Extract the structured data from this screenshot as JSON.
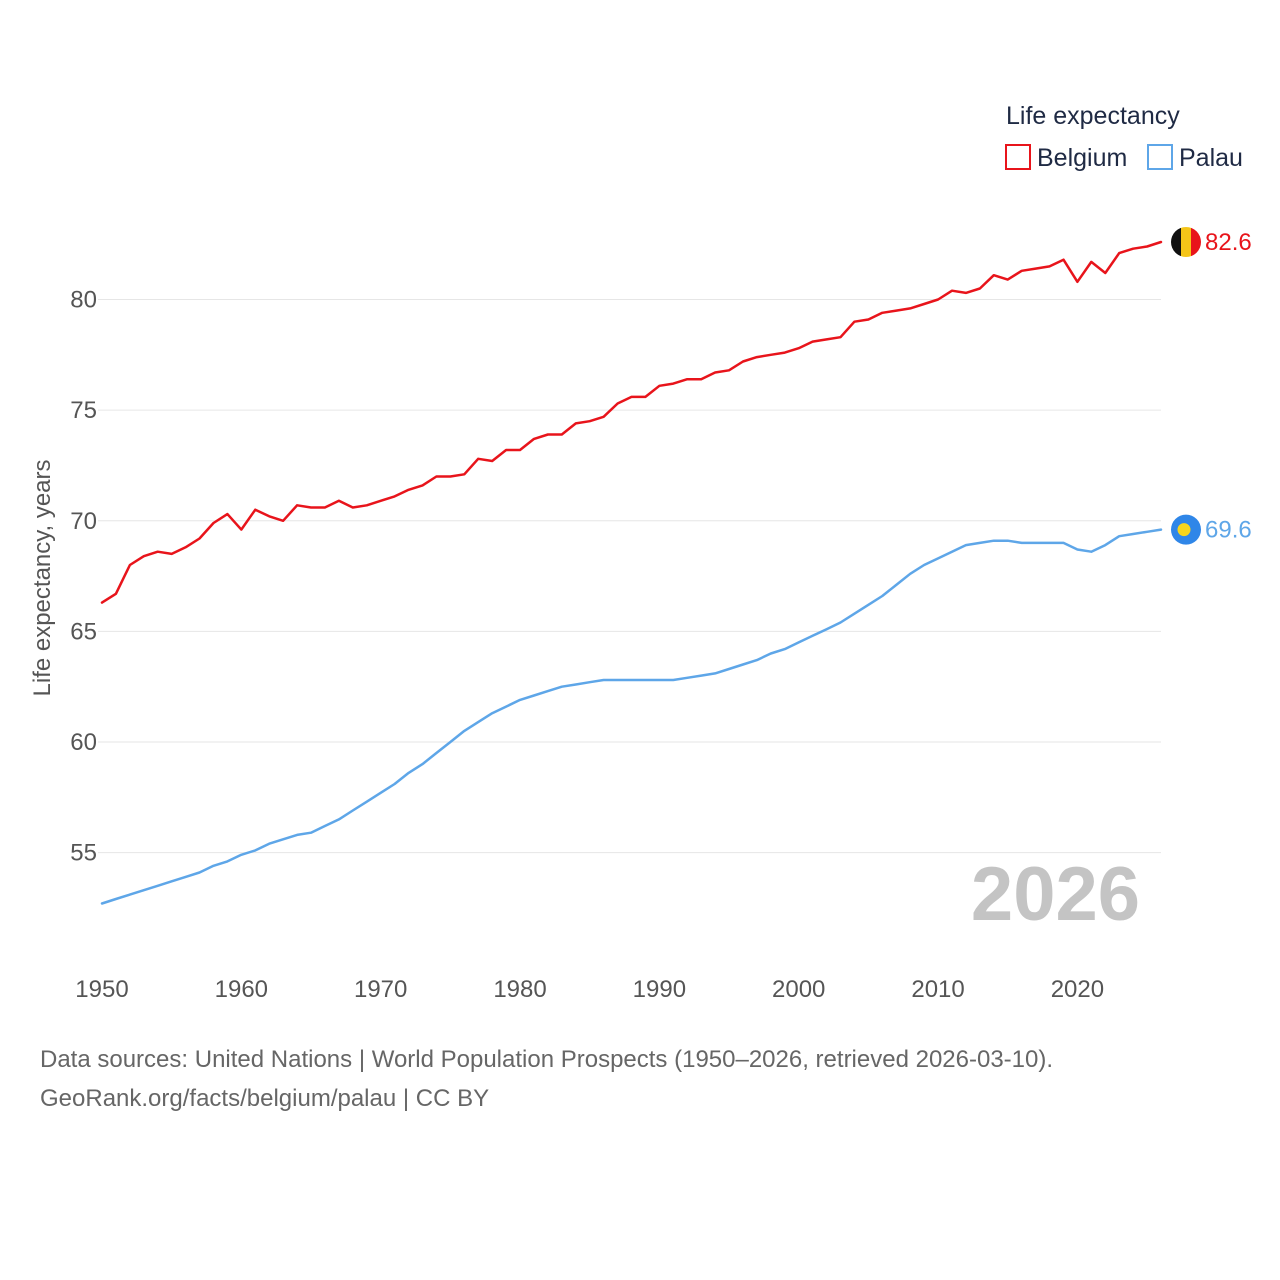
{
  "chart_data": {
    "type": "line",
    "title": "",
    "ylabel": "Life expectancy, years",
    "xlabel": "",
    "xlim": [
      1950,
      2026
    ],
    "ylim": [
      51.5,
      84.5
    ],
    "yticks": [
      55,
      60,
      65,
      70,
      75,
      80
    ],
    "xticks": [
      1950,
      1960,
      1970,
      1980,
      1990,
      2000,
      2010,
      2020
    ],
    "legend": {
      "title": "Life expectancy",
      "position": "top-right",
      "entries": [
        "Belgium",
        "Palau"
      ]
    },
    "watermark_year": "2026",
    "x": [
      1950,
      1951,
      1952,
      1953,
      1954,
      1955,
      1956,
      1957,
      1958,
      1959,
      1960,
      1961,
      1962,
      1963,
      1964,
      1965,
      1966,
      1967,
      1968,
      1969,
      1970,
      1971,
      1972,
      1973,
      1974,
      1975,
      1976,
      1977,
      1978,
      1979,
      1980,
      1981,
      1982,
      1983,
      1984,
      1985,
      1986,
      1987,
      1988,
      1989,
      1990,
      1991,
      1992,
      1993,
      1994,
      1995,
      1996,
      1997,
      1998,
      1999,
      2000,
      2001,
      2002,
      2003,
      2004,
      2005,
      2006,
      2007,
      2008,
      2009,
      2010,
      2011,
      2012,
      2013,
      2014,
      2015,
      2016,
      2017,
      2018,
      2019,
      2020,
      2021,
      2022,
      2023,
      2024,
      2025,
      2026
    ],
    "series": [
      {
        "name": "Belgium",
        "color": "#e8141b",
        "end_label": "82.6",
        "values": [
          66.3,
          66.7,
          68.0,
          68.4,
          68.6,
          68.5,
          68.8,
          69.2,
          69.9,
          70.3,
          69.6,
          70.5,
          70.2,
          70.0,
          70.7,
          70.6,
          70.6,
          70.9,
          70.6,
          70.7,
          70.9,
          71.1,
          71.4,
          71.6,
          72.0,
          72.0,
          72.1,
          72.8,
          72.7,
          73.2,
          73.2,
          73.7,
          73.9,
          73.9,
          74.4,
          74.5,
          74.7,
          75.3,
          75.6,
          75.6,
          76.1,
          76.2,
          76.4,
          76.4,
          76.7,
          76.8,
          77.2,
          77.4,
          77.5,
          77.6,
          77.8,
          78.1,
          78.2,
          78.3,
          79.0,
          79.1,
          79.4,
          79.5,
          79.6,
          79.8,
          80.0,
          80.4,
          80.3,
          80.5,
          81.1,
          80.9,
          81.3,
          81.4,
          81.5,
          81.8,
          80.8,
          81.7,
          81.2,
          82.1,
          82.3,
          82.4,
          82.6
        ]
      },
      {
        "name": "Palau",
        "color": "#5ea6e8",
        "end_label": "69.6",
        "values": [
          52.7,
          52.9,
          53.1,
          53.3,
          53.5,
          53.7,
          53.9,
          54.1,
          54.4,
          54.6,
          54.9,
          55.1,
          55.4,
          55.6,
          55.8,
          55.9,
          56.2,
          56.5,
          56.9,
          57.3,
          57.7,
          58.1,
          58.6,
          59.0,
          59.5,
          60.0,
          60.5,
          60.9,
          61.3,
          61.6,
          61.9,
          62.1,
          62.3,
          62.5,
          62.6,
          62.7,
          62.8,
          62.8,
          62.8,
          62.8,
          62.8,
          62.8,
          62.9,
          63.0,
          63.1,
          63.3,
          63.5,
          63.7,
          64.0,
          64.2,
          64.5,
          64.8,
          65.1,
          65.4,
          65.8,
          66.2,
          66.6,
          67.1,
          67.6,
          68.0,
          68.3,
          68.6,
          68.9,
          69.0,
          69.1,
          69.1,
          69.0,
          69.0,
          69.0,
          69.0,
          68.7,
          68.6,
          68.9,
          69.3,
          69.4,
          69.5,
          69.6
        ]
      }
    ]
  },
  "footer": {
    "line1": "Data sources: United Nations | World Population Prospects (1950–2026, retrieved 2026-03-10).",
    "line2": "GeoRank.org/facts/belgium/palau | CC BY"
  }
}
